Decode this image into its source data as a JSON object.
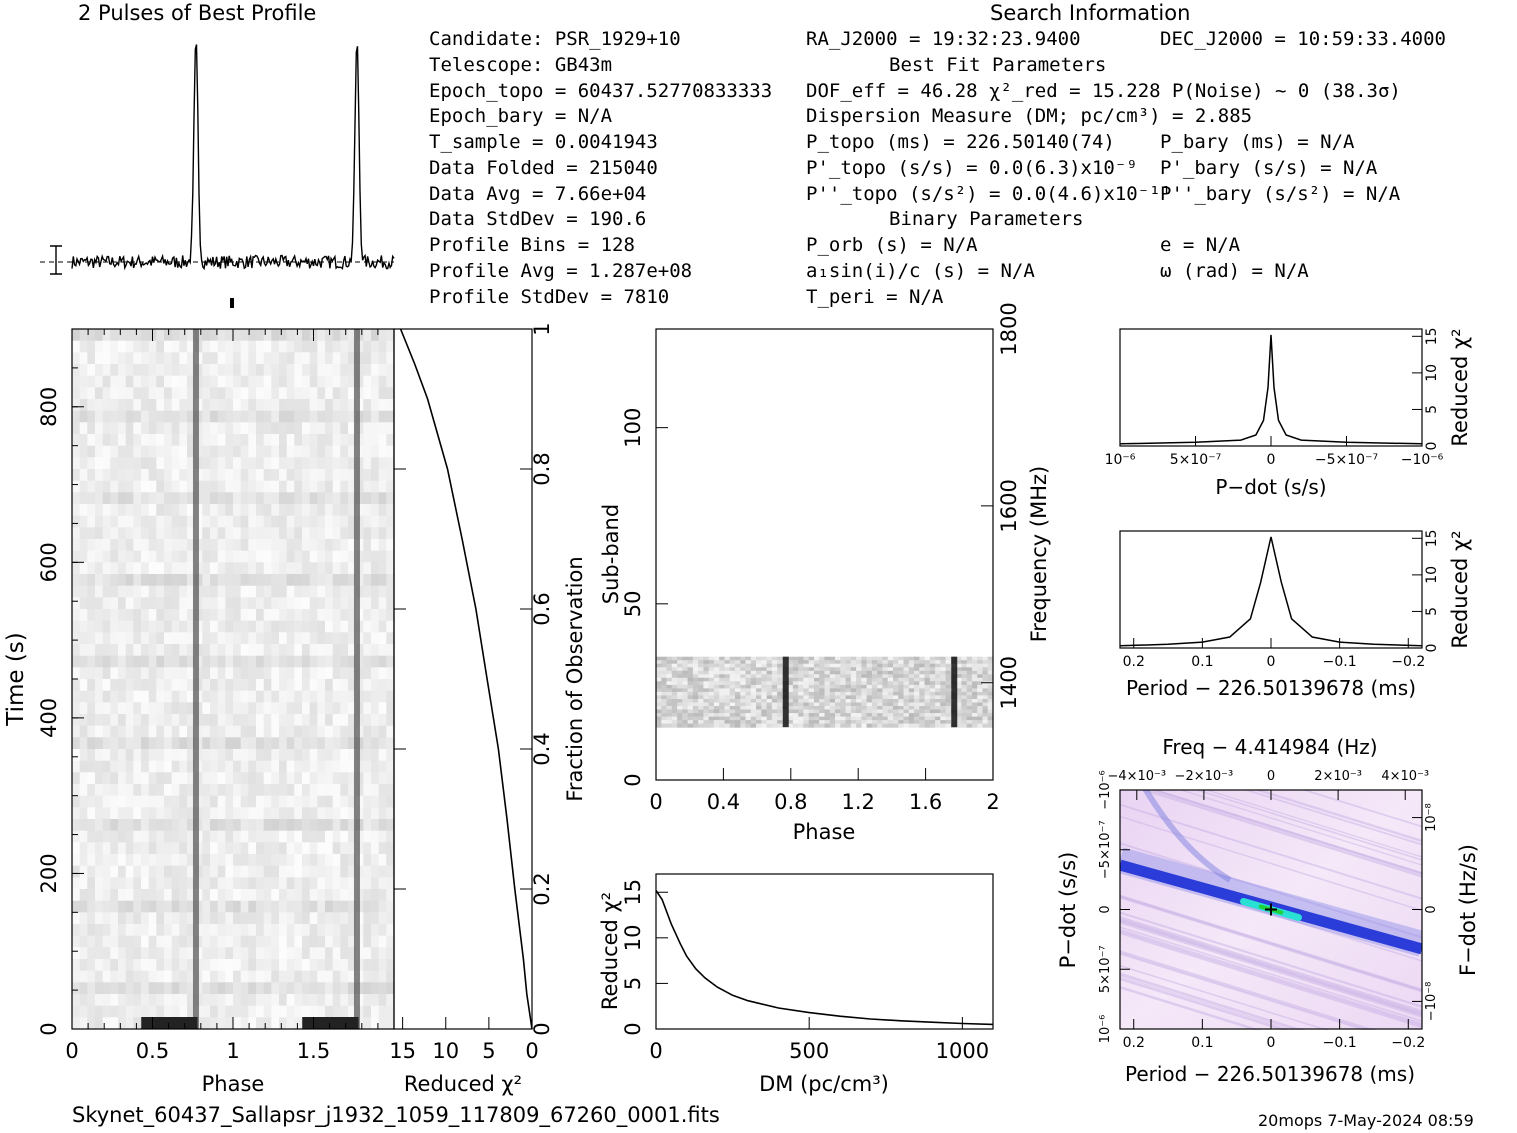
{
  "profile_title": "2 Pulses of Best Profile",
  "search_title": "Search Information",
  "footer": {
    "filename": "Skynet_60437_Sallapsr_j1932_1059_117809_67260_0001.fits",
    "stamp": "20mops   7-May-2024 08:59"
  },
  "info": {
    "candidate": "Candidate:  PSR_1929+10",
    "telescope": "Telescope:  GB43m",
    "epoch_topo": "Epoch_topo = 60437.52770833333",
    "epoch_bary": "Epoch_bary = N/A",
    "t_sample": "T_sample      =  0.0041943",
    "data_folded": "Data Folded   =  215040",
    "data_avg": "Data Avg      =  7.66e+04",
    "data_stddev": "Data StdDev   =  190.6",
    "profile_bins": "Profile Bins  =  128",
    "profile_avg": "Profile Avg   =  1.287e+08",
    "profile_stddev": "Profile StdDev =  7810"
  },
  "search": {
    "ra": "RA_J2000 = 19:32:23.9400",
    "dec": "DEC_J2000 = 10:59:33.4000",
    "best_fit": "Best Fit Parameters",
    "dof": "DOF_eff = 46.28  χ²_red = 15.228  P(Noise) ~ 0   (38.3σ)",
    "dm": "Dispersion Measure (DM; pc/cm³) = 2.885",
    "p_topo": "P_topo (ms) =  226.50140(74)",
    "p_bary": "P_bary (ms) = N/A",
    "pd_topo": "P'_topo (s/s) = 0.0(6.3)x10⁻⁹",
    "pd_bary": "P'_bary (s/s) = N/A",
    "pdd_topo": "P''_topo (s/s²) = 0.0(4.6)x10⁻¹¹",
    "pdd_bary": "P''_bary (s/s²) = N/A",
    "binary": "Binary Parameters",
    "p_orb": "P_orb (s) = N/A",
    "ecc": "e = N/A",
    "a1sini": "a₁sin(i)/c (s) = N/A",
    "omega": "ω (rad) = N/A",
    "t_peri": "T_peri = N/A"
  },
  "chart_data": [
    {
      "id": "profile",
      "type": "line",
      "title": "2 Pulses of Best Profile",
      "x_range": [
        0,
        2
      ],
      "pulse_phases": [
        0.77,
        1.77
      ],
      "baseline": 0.0,
      "peak": 1.0
    },
    {
      "id": "time_phase",
      "type": "heatmap",
      "xlabel": "Phase",
      "ylabel": "Time (s)",
      "x_ticks": [
        "0",
        "0.5",
        "1",
        "1.5"
      ],
      "x_tick_values": [
        0,
        0.5,
        1,
        1.5
      ],
      "y_ticks": [
        "0",
        "200",
        "400",
        "600",
        "800"
      ],
      "y_tick_values": [
        0,
        200,
        400,
        600,
        800
      ],
      "xlim": [
        0,
        2
      ],
      "ylim": [
        0,
        900
      ],
      "pulse_phases": [
        0.77,
        1.77
      ]
    },
    {
      "id": "redchi_time",
      "type": "line",
      "xlabel": "Reduced χ²",
      "ylabel_right": "Fraction of Observation",
      "x_ticks": [
        "15",
        "10",
        "5",
        "0"
      ],
      "x_tick_values": [
        15,
        10,
        5,
        0
      ],
      "y_ticks": [
        "0",
        "0.2",
        "0.4",
        "0.6",
        "0.8",
        "1"
      ],
      "y_tick_values": [
        0,
        0.2,
        0.4,
        0.6,
        0.8,
        1
      ],
      "xlim": [
        16,
        0
      ],
      "ylim": [
        0,
        1
      ],
      "points": [
        [
          0,
          0
        ],
        [
          0.6,
          0.05
        ],
        [
          1.0,
          0.1
        ],
        [
          1.5,
          0.15
        ],
        [
          2.0,
          0.2
        ],
        [
          2.9,
          0.3
        ],
        [
          3.9,
          0.4
        ],
        [
          5.2,
          0.5
        ],
        [
          6.5,
          0.6
        ],
        [
          8.1,
          0.7
        ],
        [
          9.8,
          0.8
        ],
        [
          12.1,
          0.9
        ],
        [
          13.6,
          0.95
        ],
        [
          15.23,
          1.0
        ]
      ]
    },
    {
      "id": "subband_phase",
      "type": "heatmap",
      "xlabel": "Phase",
      "ylabel": "Sub-band",
      "ylabel_right": "Frequency (MHz)",
      "x_ticks": [
        "0",
        "0.4",
        "0.8",
        "1.2",
        "1.6",
        "2"
      ],
      "x_tick_values": [
        0,
        0.4,
        0.8,
        1.2,
        1.6,
        2
      ],
      "y_ticks": [
        "0",
        "50",
        "100"
      ],
      "y_tick_values": [
        0,
        50,
        100
      ],
      "right_ticks": [
        "1400",
        "1600",
        "1800"
      ],
      "right_tick_values": [
        1400,
        1600,
        1800
      ],
      "xlim": [
        0,
        2
      ],
      "ylim": [
        0,
        128
      ],
      "freq_range": [
        1290,
        1800
      ],
      "data_subbands": [
        15,
        35
      ],
      "pulse_phases": [
        0.77,
        1.77
      ]
    },
    {
      "id": "dm_curve",
      "type": "line",
      "xlabel": "DM (pc/cm³)",
      "ylabel": "Reduced χ²",
      "x_ticks": [
        "0",
        "500",
        "1000"
      ],
      "x_tick_values": [
        0,
        500,
        1000
      ],
      "y_ticks": [
        "0",
        "5",
        "10",
        "15"
      ],
      "y_tick_values": [
        0,
        5,
        10,
        15
      ],
      "xlim": [
        0,
        1100
      ],
      "ylim": [
        0,
        17
      ],
      "points": [
        [
          0,
          15.2
        ],
        [
          20,
          14.2
        ],
        [
          50,
          11.5
        ],
        [
          80,
          9.3
        ],
        [
          100,
          8.0
        ],
        [
          130,
          6.6
        ],
        [
          160,
          5.6
        ],
        [
          200,
          4.6
        ],
        [
          250,
          3.7
        ],
        [
          300,
          3.1
        ],
        [
          400,
          2.3
        ],
        [
          500,
          1.8
        ],
        [
          600,
          1.4
        ],
        [
          700,
          1.1
        ],
        [
          800,
          0.9
        ],
        [
          900,
          0.75
        ],
        [
          1000,
          0.6
        ],
        [
          1100,
          0.5
        ]
      ]
    },
    {
      "id": "pdot_curve",
      "type": "line",
      "xlabel": "P−dot (s/s)",
      "ylabel_right": "Reduced χ²",
      "x_ticks": [
        "10⁻⁶",
        "5×10⁻⁷",
        "0",
        "−5×10⁻⁷",
        "−10⁻⁶"
      ],
      "x_tick_values": [
        1e-06,
        5e-07,
        0,
        -5e-07,
        -1e-06
      ],
      "y_ticks": [
        "0",
        "5",
        "10",
        "15"
      ],
      "y_tick_values": [
        0,
        5,
        10,
        15
      ],
      "xlim": [
        1e-06,
        -1e-06
      ],
      "ylim": [
        0,
        16
      ],
      "points": [
        [
          1e-06,
          0.3
        ],
        [
          5e-07,
          0.5
        ],
        [
          2e-07,
          0.8
        ],
        [
          1e-07,
          1.5
        ],
        [
          5e-08,
          3.5
        ],
        [
          2e-08,
          8
        ],
        [
          0,
          15.2
        ],
        [
          -2e-08,
          8
        ],
        [
          -5e-08,
          3.5
        ],
        [
          -1e-07,
          1.5
        ],
        [
          -2e-07,
          0.8
        ],
        [
          -5e-07,
          0.5
        ],
        [
          -1e-06,
          0.3
        ]
      ]
    },
    {
      "id": "period_curve",
      "type": "line",
      "xlabel": "Period − 226.50139678 (ms)",
      "ylabel_right": "Reduced χ²",
      "x_ticks": [
        "0.2",
        "0.1",
        "0",
        "−0.1",
        "−0.2"
      ],
      "x_tick_values": [
        0.2,
        0.1,
        0,
        -0.1,
        -0.2
      ],
      "y_ticks": [
        "0",
        "5",
        "10",
        "15"
      ],
      "y_tick_values": [
        0,
        5,
        10,
        15
      ],
      "xlim": [
        0.22,
        -0.22
      ],
      "ylim": [
        0,
        16
      ],
      "points": [
        [
          0.22,
          0.3
        ],
        [
          0.15,
          0.5
        ],
        [
          0.1,
          0.8
        ],
        [
          0.06,
          1.5
        ],
        [
          0.03,
          4
        ],
        [
          0.015,
          9
        ],
        [
          0,
          15.2
        ],
        [
          -0.015,
          9
        ],
        [
          -0.03,
          4
        ],
        [
          -0.06,
          1.5
        ],
        [
          -0.1,
          0.8
        ],
        [
          -0.15,
          0.5
        ],
        [
          -0.22,
          0.3
        ]
      ]
    },
    {
      "id": "ppdot_plane",
      "type": "heatmap",
      "title": "Freq − 4.414984 (Hz)",
      "xlabel": "Period − 226.50139678 (ms)",
      "ylabel": "P−dot (s/s)",
      "ylabel_right": "F−dot (Hz/s)",
      "x_ticks": [
        "0.2",
        "0.1",
        "0",
        "−0.1",
        "−0.2"
      ],
      "x_tick_values": [
        0.2,
        0.1,
        0,
        -0.1,
        -0.2
      ],
      "top_ticks": [
        "−4×10⁻³",
        "−2×10⁻³",
        "0",
        "2×10⁻³",
        "4×10⁻³"
      ],
      "top_tick_values": [
        -0.004,
        -0.002,
        0,
        0.002,
        0.004
      ],
      "y_ticks": [
        "10⁻⁶",
        "5×10⁻⁷",
        "0",
        "−5×10⁻⁷",
        "−10⁻⁶"
      ],
      "y_tick_values": [
        1e-06,
        5e-07,
        0,
        -5e-07,
        -1e-06
      ],
      "right_ticks": [
        "10⁻⁸",
        "0",
        "−10⁻⁸"
      ],
      "right_tick_values": [
        1e-08,
        0,
        -1e-08
      ],
      "xlim": [
        0.22,
        -0.22
      ],
      "ylim": [
        1e-06,
        -1e-06
      ],
      "colors": {
        "background": "#f1ddf6",
        "ridge": "#1b2fd6",
        "core": "#29e0d4",
        "peak": "#1fd13a"
      }
    }
  ]
}
